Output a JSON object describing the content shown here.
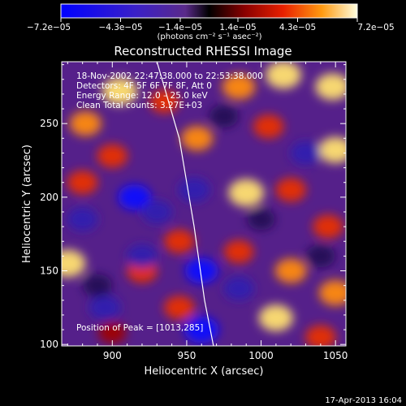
{
  "chart_data": {
    "type": "heatmap",
    "title": "Reconstructed RHESSI Image",
    "xlabel": "Heliocentric X (arcsec)",
    "ylabel": "Heliocentric Y (arcsec)",
    "xlim": [
      866,
      1057
    ],
    "ylim": [
      99,
      292
    ],
    "x_ticks": [
      900,
      950,
      1000,
      1050
    ],
    "x_tick_labels": [
      "900",
      "950",
      "1000",
      "1050"
    ],
    "y_ticks": [
      100,
      150,
      200,
      250
    ],
    "y_tick_labels": [
      "100",
      "150",
      "200",
      "250"
    ],
    "colorbar": {
      "range": [
        -7.2e-05,
        7.2e-05
      ],
      "tick_values": [
        -7.2e-05,
        -4.3e-05,
        -1.4e-05,
        1.4e-05,
        4.3e-05,
        7.2e-05
      ],
      "tick_labels": [
        "−7.2e−05",
        "−4.3e−05",
        "−1.4e−05",
        "1.4e−05",
        "4.3e−05",
        "7.2e−05"
      ],
      "unit_label": "(photons cm⁻² s⁻¹ asec⁻²)"
    },
    "annotations": [
      "18‑Nov‑2002 22:47:38.000 to 22:53:38.000",
      "Detectors: 4F 5F 6F 7F 8F, Att 0",
      "Energy Range: 12.0 – 25.0 keV",
      "Clean     Total counts: 3.27E+03"
    ],
    "peak_label": "Position of Peak = [1013,285]",
    "limb_points": [
      [
        930,
        292
      ],
      [
        945,
        240
      ],
      [
        955,
        180
      ],
      [
        962,
        130
      ],
      [
        968,
        99
      ]
    ],
    "grid": false,
    "legend": "none",
    "blobs": [
      {
        "x": 905,
        "y": 272,
        "v": 1.0
      },
      {
        "x": 882,
        "y": 250,
        "v": 0.7
      },
      {
        "x": 935,
        "y": 265,
        "v": 0.55
      },
      {
        "x": 985,
        "y": 275,
        "v": 0.8
      },
      {
        "x": 1015,
        "y": 283,
        "v": 1.0
      },
      {
        "x": 1048,
        "y": 275,
        "v": 0.9
      },
      {
        "x": 1005,
        "y": 248,
        "v": 0.6
      },
      {
        "x": 1050,
        "y": 232,
        "v": 0.85
      },
      {
        "x": 957,
        "y": 240,
        "v": 0.7
      },
      {
        "x": 990,
        "y": 203,
        "v": 1.0
      },
      {
        "x": 1020,
        "y": 205,
        "v": 0.6
      },
      {
        "x": 1045,
        "y": 180,
        "v": 0.6
      },
      {
        "x": 900,
        "y": 228,
        "v": 0.6
      },
      {
        "x": 880,
        "y": 210,
        "v": 0.6
      },
      {
        "x": 870,
        "y": 155,
        "v": 1.0
      },
      {
        "x": 920,
        "y": 150,
        "v": 0.6
      },
      {
        "x": 945,
        "y": 170,
        "v": 0.6
      },
      {
        "x": 985,
        "y": 163,
        "v": 0.55
      },
      {
        "x": 1020,
        "y": 150,
        "v": 0.7
      },
      {
        "x": 1050,
        "y": 135,
        "v": 0.8
      },
      {
        "x": 945,
        "y": 125,
        "v": 0.6
      },
      {
        "x": 1010,
        "y": 118,
        "v": 0.9
      },
      {
        "x": 900,
        "y": 108,
        "v": 0.4
      },
      {
        "x": 1040,
        "y": 105,
        "v": 0.6
      },
      {
        "x": 915,
        "y": 200,
        "v": -0.8
      },
      {
        "x": 930,
        "y": 190,
        "v": -0.6
      },
      {
        "x": 955,
        "y": 205,
        "v": -0.7
      },
      {
        "x": 920,
        "y": 160,
        "v": -0.6
      },
      {
        "x": 960,
        "y": 150,
        "v": -0.8
      },
      {
        "x": 895,
        "y": 125,
        "v": -0.7
      },
      {
        "x": 960,
        "y": 110,
        "v": -0.9
      },
      {
        "x": 985,
        "y": 138,
        "v": -0.6
      },
      {
        "x": 1030,
        "y": 230,
        "v": -0.6
      },
      {
        "x": 975,
        "y": 255,
        "v": -0.5
      },
      {
        "x": 1040,
        "y": 160,
        "v": -0.5
      },
      {
        "x": 1000,
        "y": 185,
        "v": -0.4
      },
      {
        "x": 880,
        "y": 185,
        "v": -0.6
      },
      {
        "x": 890,
        "y": 140,
        "v": -0.5
      }
    ]
  },
  "footer": {
    "timestamp": "17‑Apr‑2013 16:04"
  }
}
